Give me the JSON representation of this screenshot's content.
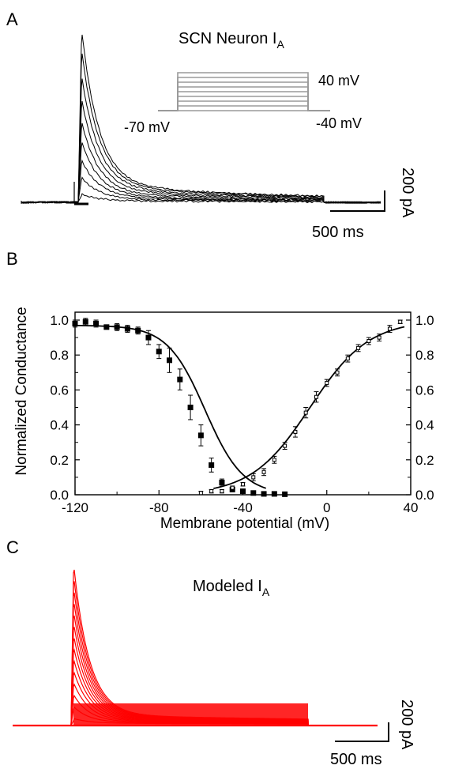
{
  "panels": {
    "a": {
      "letter": "A",
      "title_main": "SCN Neuron I",
      "title_sub": "A",
      "protocol": {
        "step_top": "40 mV",
        "holding": "-70 mV",
        "step_bottom": "-40 mV"
      },
      "scale_y": "200 pA",
      "scale_x": "500 ms",
      "trace_color": "#000000",
      "protocol_color": "#9a9a9a"
    },
    "b": {
      "letter": "B"
    },
    "c": {
      "letter": "C",
      "title_main": "Modeled I",
      "title_sub": "A",
      "scale_y": "200 pA",
      "scale_x": "500 ms",
      "trace_color": "#ff0000"
    }
  },
  "chart_data": [
    {
      "type": "line",
      "panel": "A",
      "title": "SCN Neuron IA",
      "series_description": "family of current traces, one per voltage step",
      "protocol_steps_mV": {
        "holding": -70,
        "min_step": -40,
        "max_step": 40,
        "n_steps": 9
      },
      "scale_bars": {
        "current": "200 pA",
        "time": "500 ms"
      }
    },
    {
      "type": "scatter",
      "panel": "B",
      "xlabel": "Membrane potential (mV)",
      "ylabel": "Normalized Conductance",
      "xlim": [
        -120,
        40
      ],
      "ylim": [
        0,
        1.0
      ],
      "xticks": [
        "-120",
        "-80",
        "-40",
        "0",
        "40"
      ],
      "yticks": [
        "0.0",
        "0.2",
        "0.4",
        "0.6",
        "0.8",
        "1.0"
      ],
      "yticks_right": [
        "0.0",
        "0.2",
        "0.4",
        "0.6",
        "0.8",
        "1.0"
      ],
      "series": [
        {
          "marker": "filled-square",
          "x": [
            -120,
            -115,
            -110,
            -105,
            -100,
            -95,
            -90,
            -85,
            -80,
            -75,
            -70,
            -65,
            -60,
            -55,
            -50,
            -45,
            -40,
            -35,
            -30,
            -25,
            -20
          ],
          "y": [
            0.98,
            0.99,
            0.98,
            0.96,
            0.96,
            0.95,
            0.94,
            0.9,
            0.82,
            0.77,
            0.66,
            0.5,
            0.34,
            0.17,
            0.07,
            0.03,
            0.02,
            0.01,
            0.005,
            0.005,
            0.003
          ],
          "err": [
            0.02,
            0.02,
            0.02,
            0.01,
            0.02,
            0.02,
            0.02,
            0.04,
            0.04,
            0.07,
            0.06,
            0.07,
            0.06,
            0.04,
            0.02,
            0.01,
            0.01,
            0.005,
            0.005,
            0.005,
            0.005
          ]
        },
        {
          "marker": "open-square",
          "x": [
            -60,
            -55,
            -50,
            -45,
            -40,
            -35,
            -30,
            -25,
            -20,
            -15,
            -10,
            -5,
            0,
            5,
            10,
            15,
            20,
            25,
            30,
            35
          ],
          "y": [
            0.01,
            0.02,
            0.02,
            0.04,
            0.06,
            0.1,
            0.13,
            0.2,
            0.28,
            0.36,
            0.47,
            0.56,
            0.64,
            0.7,
            0.78,
            0.84,
            0.88,
            0.9,
            0.95,
            0.99
          ],
          "err": [
            0.01,
            0.01,
            0.01,
            0.01,
            0.01,
            0.02,
            0.02,
            0.02,
            0.02,
            0.03,
            0.03,
            0.03,
            0.02,
            0.02,
            0.02,
            0.02,
            0.02,
            0.02,
            0.02,
            0.01
          ]
        }
      ],
      "fits": [
        {
          "kind": "boltzmann-inactivation",
          "v_half": -58,
          "slope": 9,
          "max": 0.97
        },
        {
          "kind": "boltzmann-activation",
          "v_half": -8,
          "slope": 14,
          "max": 1.0
        }
      ]
    },
    {
      "type": "line",
      "panel": "C",
      "title": "Modeled IA",
      "series_description": "family of modeled current traces",
      "n_traces": 14,
      "scale_bars": {
        "current": "200 pA",
        "time": "500 ms"
      }
    }
  ]
}
